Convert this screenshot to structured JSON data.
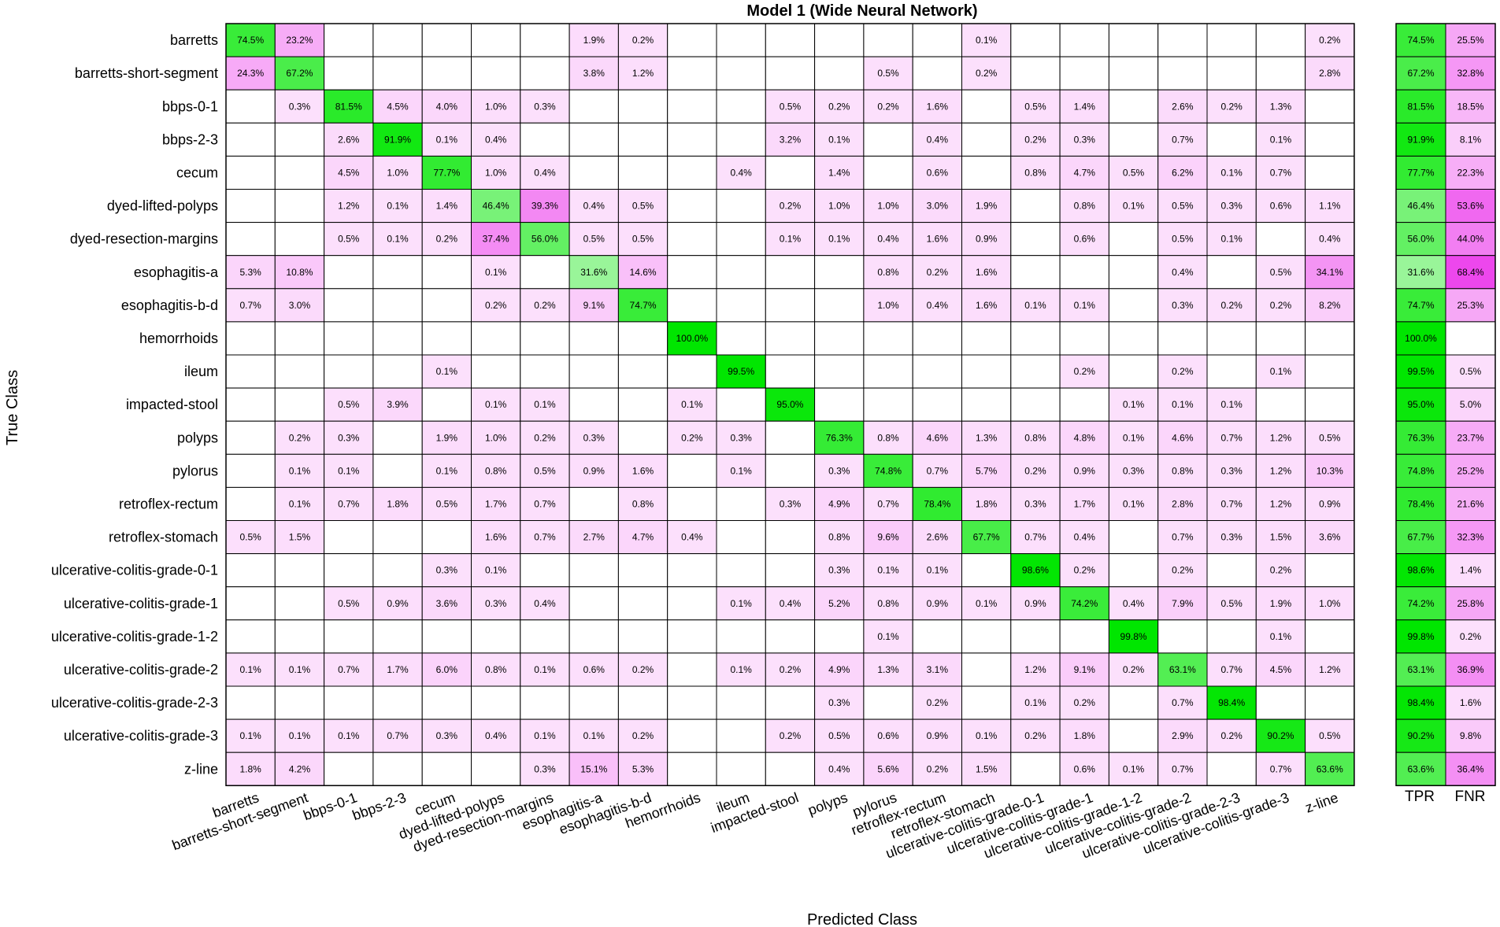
{
  "chart_data": {
    "type": "heatmap",
    "title": "Model 1 (Wide Neural Network)",
    "xlabel": "Predicted Class",
    "ylabel": "True Class",
    "classes": [
      "barretts",
      "barretts-short-segment",
      "bbps-0-1",
      "bbps-2-3",
      "cecum",
      "dyed-lifted-polyps",
      "dyed-resection-margins",
      "esophagitis-a",
      "esophagitis-b-d",
      "hemorrhoids",
      "ileum",
      "impacted-stool",
      "polyps",
      "pylorus",
      "retroflex-rectum",
      "retroflex-stomach",
      "ulcerative-colitis-grade-0-1",
      "ulcerative-colitis-grade-1",
      "ulcerative-colitis-grade-1-2",
      "ulcerative-colitis-grade-2",
      "ulcerative-colitis-grade-2-3",
      "ulcerative-colitis-grade-3",
      "z-line"
    ],
    "value_unit": "%",
    "matrix": [
      [
        74.5,
        23.2,
        null,
        null,
        null,
        null,
        null,
        1.9,
        0.2,
        null,
        null,
        null,
        null,
        null,
        null,
        0.1,
        null,
        null,
        null,
        null,
        null,
        null,
        0.2
      ],
      [
        24.3,
        67.2,
        null,
        null,
        null,
        null,
        null,
        3.8,
        1.2,
        null,
        null,
        null,
        null,
        0.5,
        null,
        0.2,
        null,
        null,
        null,
        null,
        null,
        null,
        2.8
      ],
      [
        null,
        0.3,
        81.5,
        4.5,
        4.0,
        1.0,
        0.3,
        null,
        null,
        null,
        null,
        0.5,
        0.2,
        0.2,
        1.6,
        null,
        0.5,
        1.4,
        null,
        2.6,
        0.2,
        1.3,
        null
      ],
      [
        null,
        null,
        2.6,
        91.9,
        0.1,
        0.4,
        null,
        null,
        null,
        null,
        null,
        3.2,
        0.1,
        null,
        0.4,
        null,
        0.2,
        0.3,
        null,
        0.7,
        null,
        0.1,
        null
      ],
      [
        null,
        null,
        4.5,
        1.0,
        77.7,
        1.0,
        0.4,
        null,
        null,
        null,
        0.4,
        null,
        1.4,
        null,
        0.6,
        null,
        0.8,
        4.7,
        0.5,
        6.2,
        0.1,
        0.7,
        null
      ],
      [
        null,
        null,
        1.2,
        0.1,
        1.4,
        46.4,
        39.3,
        0.4,
        0.5,
        null,
        null,
        0.2,
        1.0,
        1.0,
        3.0,
        1.9,
        null,
        0.8,
        0.1,
        0.5,
        0.3,
        0.6,
        1.1
      ],
      [
        null,
        null,
        0.5,
        0.1,
        0.2,
        37.4,
        56.0,
        0.5,
        0.5,
        null,
        null,
        0.1,
        0.1,
        0.4,
        1.6,
        0.9,
        null,
        0.6,
        null,
        0.5,
        0.1,
        null,
        0.4
      ],
      [
        5.3,
        10.8,
        null,
        null,
        null,
        0.1,
        null,
        31.6,
        14.6,
        null,
        null,
        null,
        null,
        0.8,
        0.2,
        1.6,
        null,
        null,
        null,
        0.4,
        null,
        0.5,
        34.1
      ],
      [
        0.7,
        3.0,
        null,
        null,
        null,
        0.2,
        0.2,
        9.1,
        74.7,
        null,
        null,
        null,
        null,
        1.0,
        0.4,
        1.6,
        0.1,
        0.1,
        null,
        0.3,
        0.2,
        0.2,
        8.2
      ],
      [
        null,
        null,
        null,
        null,
        null,
        null,
        null,
        null,
        null,
        100.0,
        null,
        null,
        null,
        null,
        null,
        null,
        null,
        null,
        null,
        null,
        null,
        null,
        null
      ],
      [
        null,
        null,
        null,
        null,
        0.1,
        null,
        null,
        null,
        null,
        null,
        99.5,
        null,
        null,
        null,
        null,
        null,
        null,
        0.2,
        null,
        0.2,
        null,
        0.1,
        null
      ],
      [
        null,
        null,
        0.5,
        3.9,
        null,
        0.1,
        0.1,
        null,
        null,
        0.1,
        null,
        95.0,
        null,
        null,
        null,
        null,
        null,
        null,
        0.1,
        0.1,
        0.1,
        null,
        null
      ],
      [
        null,
        0.2,
        0.3,
        null,
        1.9,
        1.0,
        0.2,
        0.3,
        null,
        0.2,
        0.3,
        null,
        76.3,
        0.8,
        4.6,
        1.3,
        0.8,
        4.8,
        0.1,
        4.6,
        0.7,
        1.2,
        0.5
      ],
      [
        null,
        0.1,
        0.1,
        null,
        0.1,
        0.8,
        0.5,
        0.9,
        1.6,
        null,
        0.1,
        null,
        0.3,
        74.8,
        0.7,
        5.7,
        0.2,
        0.9,
        0.3,
        0.8,
        0.3,
        1.2,
        10.3
      ],
      [
        null,
        0.1,
        0.7,
        1.8,
        0.5,
        1.7,
        0.7,
        null,
        0.8,
        null,
        null,
        0.3,
        4.9,
        0.7,
        78.4,
        1.8,
        0.3,
        1.7,
        0.1,
        2.8,
        0.7,
        1.2,
        0.9
      ],
      [
        0.5,
        1.5,
        null,
        null,
        null,
        1.6,
        0.7,
        2.7,
        4.7,
        0.4,
        null,
        null,
        0.8,
        9.6,
        2.6,
        67.7,
        0.7,
        0.4,
        null,
        0.7,
        0.3,
        1.5,
        3.6
      ],
      [
        null,
        null,
        null,
        null,
        0.3,
        0.1,
        null,
        null,
        null,
        null,
        null,
        null,
        0.3,
        0.1,
        0.1,
        null,
        98.6,
        0.2,
        null,
        0.2,
        null,
        0.2,
        null
      ],
      [
        null,
        null,
        0.5,
        0.9,
        3.6,
        0.3,
        0.4,
        null,
        null,
        null,
        0.1,
        0.4,
        5.2,
        0.8,
        0.9,
        0.1,
        0.9,
        74.2,
        0.4,
        7.9,
        0.5,
        1.9,
        1.0
      ],
      [
        null,
        null,
        null,
        null,
        null,
        null,
        null,
        null,
        null,
        null,
        null,
        null,
        null,
        0.1,
        null,
        null,
        null,
        null,
        99.8,
        null,
        null,
        0.1,
        null
      ],
      [
        0.1,
        0.1,
        0.7,
        1.7,
        6.0,
        0.8,
        0.1,
        0.6,
        0.2,
        null,
        0.1,
        0.2,
        4.9,
        1.3,
        3.1,
        null,
        1.2,
        9.1,
        0.2,
        63.1,
        0.7,
        4.5,
        1.2
      ],
      [
        null,
        null,
        null,
        null,
        null,
        null,
        null,
        null,
        null,
        null,
        null,
        null,
        0.3,
        null,
        0.2,
        null,
        0.1,
        0.2,
        null,
        0.7,
        98.4,
        null,
        null
      ],
      [
        0.1,
        0.1,
        0.1,
        0.7,
        0.3,
        0.4,
        0.1,
        0.1,
        0.2,
        null,
        null,
        0.2,
        0.5,
        0.6,
        0.9,
        0.1,
        0.2,
        1.8,
        null,
        2.9,
        0.2,
        90.2,
        0.5
      ],
      [
        1.8,
        4.2,
        null,
        null,
        null,
        null,
        0.3,
        15.1,
        5.3,
        null,
        null,
        null,
        0.4,
        5.6,
        0.2,
        1.5,
        null,
        0.6,
        0.1,
        0.7,
        null,
        0.7,
        63.6
      ]
    ],
    "summary_labels": [
      "TPR",
      "FNR"
    ],
    "tpr": [
      74.5,
      67.2,
      81.5,
      91.9,
      77.7,
      46.4,
      56.0,
      31.6,
      74.7,
      100.0,
      99.5,
      95.0,
      76.3,
      74.8,
      78.4,
      67.7,
      98.6,
      74.2,
      99.8,
      63.1,
      98.4,
      90.2,
      63.6
    ],
    "fnr": [
      25.5,
      32.8,
      18.5,
      8.1,
      22.3,
      53.6,
      44.0,
      68.4,
      25.3,
      null,
      0.5,
      5.0,
      23.7,
      25.2,
      21.6,
      32.3,
      1.4,
      25.8,
      0.2,
      36.9,
      1.6,
      9.8,
      36.4
    ],
    "colors": {
      "correct": "#00e600",
      "error": "#e600e6",
      "background": "#ffffff",
      "grid": "#000000"
    }
  }
}
